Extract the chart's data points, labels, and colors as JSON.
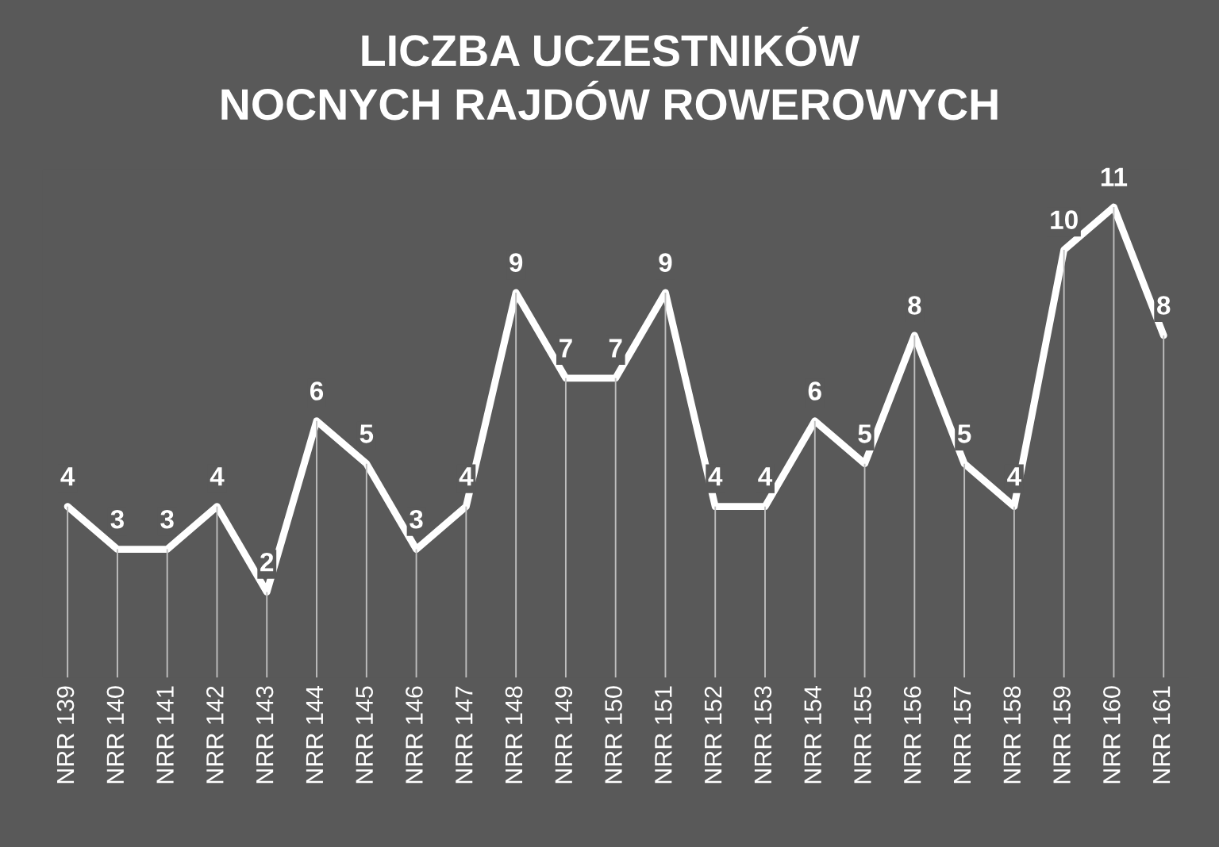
{
  "chart_data": {
    "type": "line",
    "title": "LICZBA UCZESTNIKÓW\nNOCNYCH RAJDÓW ROWEROWYCH",
    "categories": [
      "NRR 139",
      "NRR 140",
      "NRR 141",
      "NRR 142",
      "NRR 143",
      "NRR 144",
      "NRR 145",
      "NRR 146",
      "NRR 147",
      "NRR 148",
      "NRR 149",
      "NRR 150",
      "NRR 151",
      "NRR 152",
      "NRR 153",
      "NRR 154",
      "NRR 155",
      "NRR 156",
      "NRR 157",
      "NRR 158",
      "NRR 159",
      "NRR 160",
      "NRR 161"
    ],
    "series": [
      {
        "type": "bar",
        "color": "#bfbfbf",
        "values": [
          4,
          3,
          3,
          4,
          2,
          6,
          5,
          3,
          4,
          9,
          7,
          7,
          9,
          4,
          4,
          6,
          5,
          8,
          5,
          4,
          10,
          11,
          8
        ]
      },
      {
        "color": "#ffffff",
        "values": [
          4,
          3,
          3,
          4,
          2,
          6,
          5,
          3,
          4,
          9,
          7,
          7,
          9,
          4,
          4,
          6,
          5,
          8,
          5,
          4,
          10,
          11,
          8
        ],
        "value_labels": [
          "4",
          "3",
          "3",
          "4",
          "2",
          "6",
          "5",
          "3",
          "4",
          "9",
          "7",
          "7",
          "9",
          "4",
          "4",
          "6",
          "5",
          "8",
          "5",
          "4",
          "10",
          "11",
          "8"
        ]
      }
    ],
    "grid": false,
    "legend": false,
    "line_style": "solid"
  }
}
